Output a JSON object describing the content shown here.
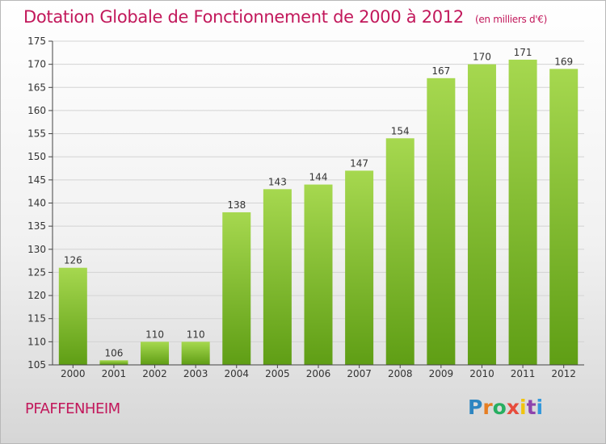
{
  "title": {
    "main": "Dotation Globale de Fonctionnement de 2000 à 2012",
    "unit": "(en milliers d'€)"
  },
  "footer": {
    "commune": "PFAFFENHEIM",
    "logo_letters": [
      "P",
      "r",
      "o",
      "x",
      "i",
      "t",
      "i"
    ],
    "logo_colors": [
      "#2e86c1",
      "#e67e22",
      "#27ae60",
      "#e74c3c",
      "#f1c40f",
      "#8e44ad",
      "#3498db"
    ]
  },
  "colors": {
    "title": "#c2185b",
    "bar_top": "#a6d84f",
    "bar_bottom": "#5f9e15",
    "grid": "#d3d3d3"
  },
  "chart_data": {
    "type": "bar",
    "title": "Dotation Globale de Fonctionnement de 2000 à 2012",
    "unit": "(en milliers d'€)",
    "categories": [
      "2000",
      "2001",
      "2002",
      "2003",
      "2004",
      "2005",
      "2006",
      "2007",
      "2008",
      "2009",
      "2010",
      "2011",
      "2012"
    ],
    "values": [
      126,
      106,
      110,
      110,
      138,
      143,
      144,
      147,
      154,
      167,
      170,
      171,
      169
    ],
    "ylim": [
      105,
      175
    ],
    "yticks": [
      105,
      110,
      115,
      120,
      125,
      130,
      135,
      140,
      145,
      150,
      155,
      160,
      165,
      170,
      175
    ],
    "grid": true,
    "legend": "none"
  }
}
